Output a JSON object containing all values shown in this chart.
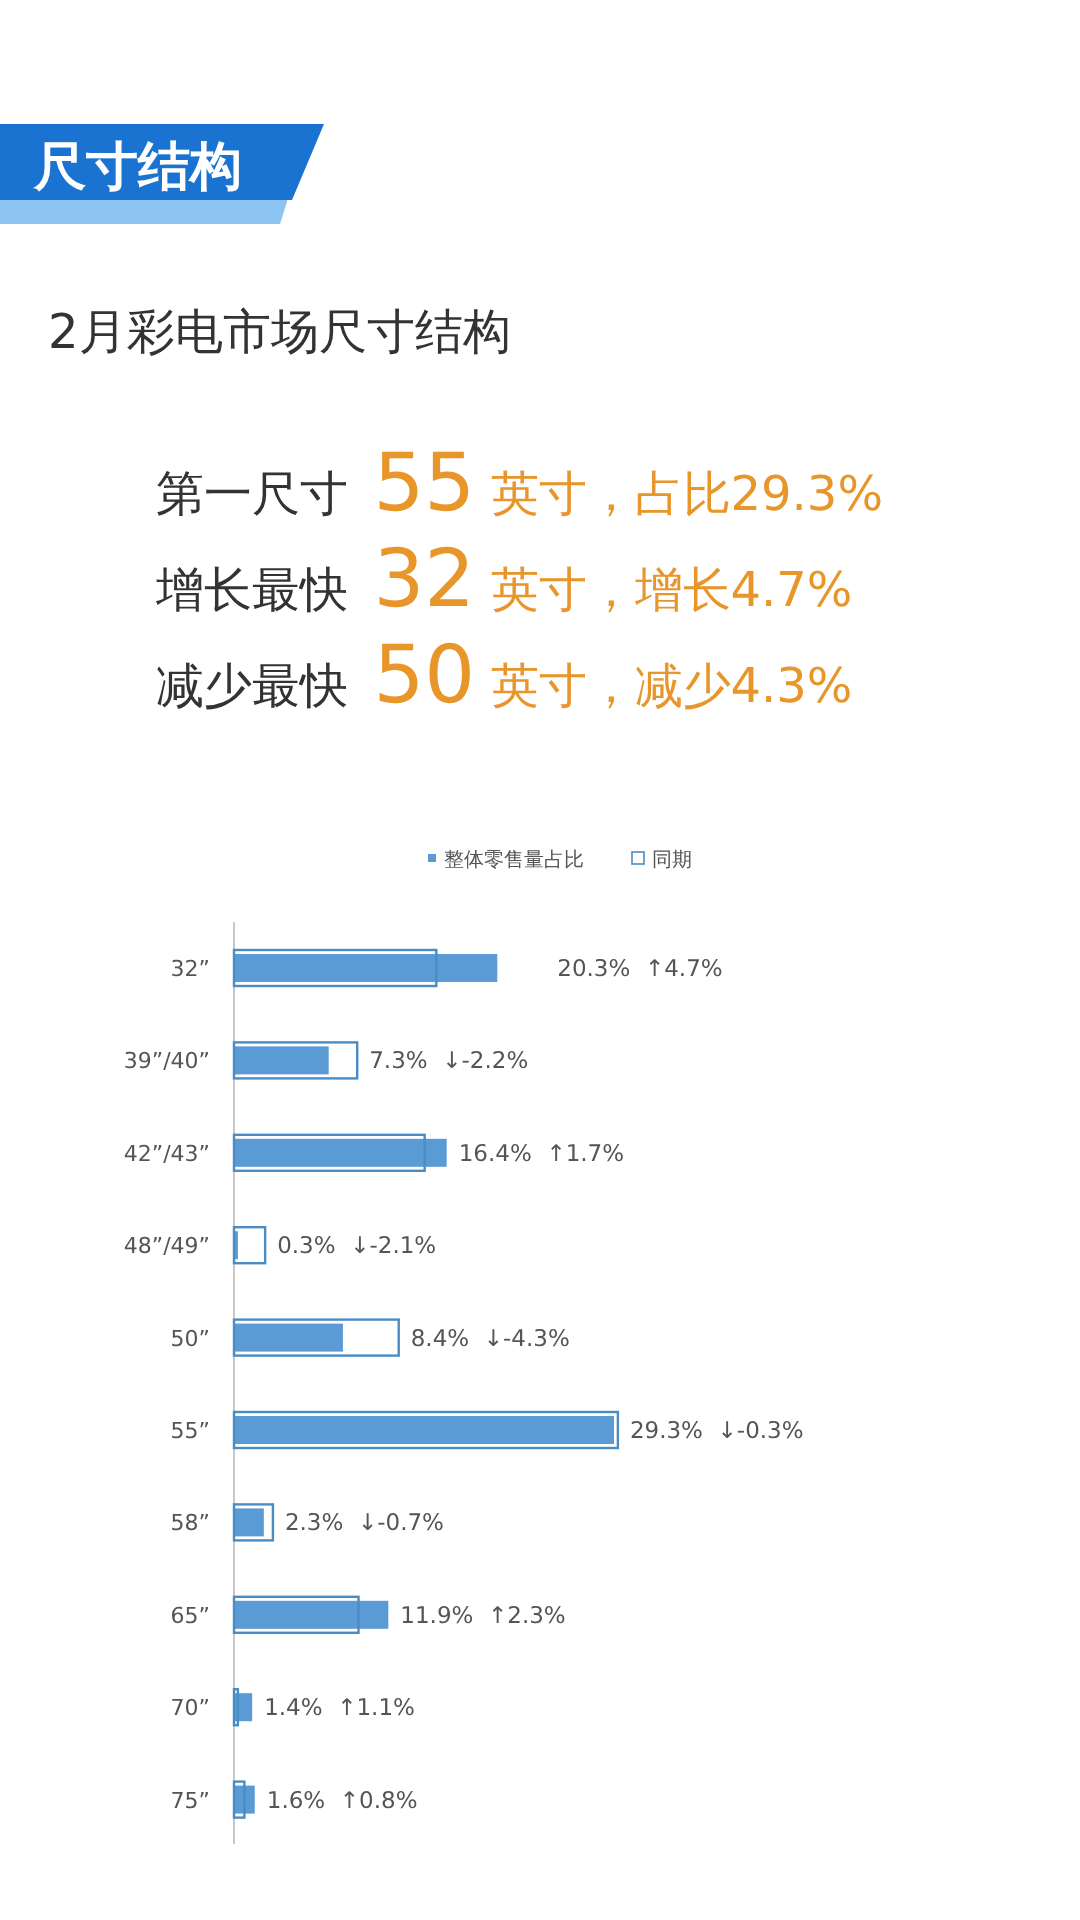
{
  "chart_data": {
    "type": "bar",
    "orientation": "horizontal",
    "title": "尺寸结构",
    "subtitle": "2月彩电市场尺寸结构",
    "annotations": [
      "第一尺寸 55 英寸，占比29.3%",
      "增长最快 32 英寸，增长4.7%",
      "减少最快 50 英寸，减少4.3%"
    ],
    "categories": [
      "32”",
      "39”/40”",
      "42”/43”",
      "48”/49”",
      "50”",
      "55”",
      "58”",
      "65”",
      "70”",
      "75”"
    ],
    "legend": "top",
    "series": [
      {
        "name": "整体零售量占比",
        "color": "#5b9bd5",
        "values": [
          20.3,
          7.3,
          16.4,
          0.3,
          8.4,
          29.3,
          2.3,
          11.9,
          1.4,
          1.6
        ],
        "value_labels": [
          "20.3%  ↑4.7%",
          "7.3%  ↓-2.2%",
          "16.4%  ↑1.7%",
          "0.3%  ↓-2.1%",
          "8.4%  ↓-4.3%",
          "29.3%  ↓-0.3%",
          "2.3%  ↓-0.7%",
          "11.9%  ↑2.3%",
          "1.4%  ↑1.1%",
          "1.6%  ↑0.8%"
        ]
      },
      {
        "name": "同期",
        "color": "#4a8cc4",
        "values": [
          15.6,
          9.5,
          14.7,
          2.4,
          12.7,
          29.6,
          3.0,
          9.6,
          0.3,
          0.8
        ]
      }
    ]
  }
}
